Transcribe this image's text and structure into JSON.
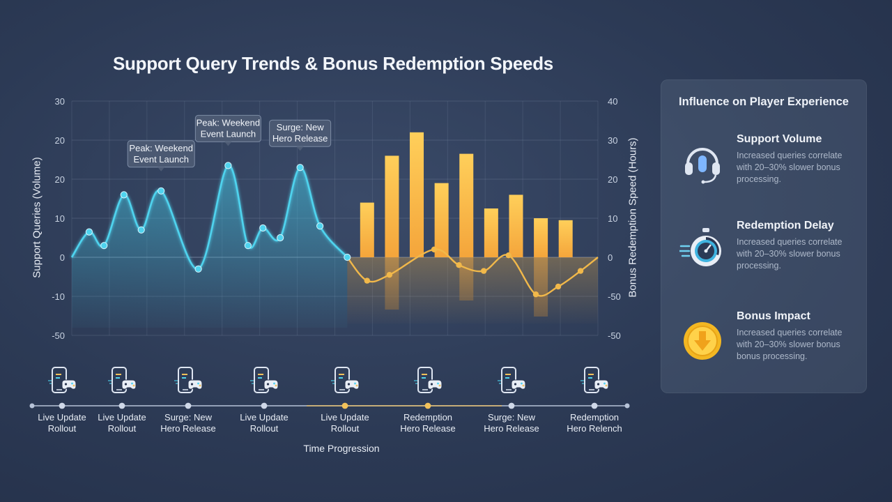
{
  "title": "Support Query Trends & Bonus Redemption Speeds",
  "chart_data": {
    "type": "line+bar",
    "title": "Support Query Trends & Bonus Redemption Speeds",
    "xlabel": "Time Progression",
    "ylabel_left": "Support Queries (Volume)",
    "ylabel_right": "Bonus Redemption Speed (Hours)",
    "ylim_left": [
      -50,
      30
    ],
    "ylim_right": [
      -50,
      40
    ],
    "left_ticks": [
      "30",
      "20",
      "20",
      "10",
      "0",
      "-10",
      "-50"
    ],
    "right_ticks": [
      "40",
      "30",
      "20",
      "10",
      "0",
      "-50",
      "-50"
    ],
    "grid": true,
    "support_queries": [
      {
        "x": 0.0,
        "y": 0
      },
      {
        "x": 0.7,
        "y": 6.5
      },
      {
        "x": 1.3,
        "y": 3
      },
      {
        "x": 2.1,
        "y": 16
      },
      {
        "x": 2.8,
        "y": 7
      },
      {
        "x": 3.6,
        "y": 17
      },
      {
        "x": 5.1,
        "y": -3
      },
      {
        "x": 6.3,
        "y": 23.5
      },
      {
        "x": 7.1,
        "y": 3
      },
      {
        "x": 7.7,
        "y": 7.5
      },
      {
        "x": 8.4,
        "y": 5
      },
      {
        "x": 9.2,
        "y": 23
      },
      {
        "x": 10.0,
        "y": 8
      },
      {
        "x": 11.1,
        "y": 0
      }
    ],
    "redemption_speed": [
      {
        "x": 11.1,
        "y": 0
      },
      {
        "x": 11.9,
        "y": -6
      },
      {
        "x": 12.8,
        "y": -4.5
      },
      {
        "x": 14.6,
        "y": 2
      },
      {
        "x": 15.6,
        "y": -2
      },
      {
        "x": 16.6,
        "y": -3.5
      },
      {
        "x": 17.6,
        "y": 0.5
      },
      {
        "x": 18.7,
        "y": -9.5
      },
      {
        "x": 19.6,
        "y": -7.5
      },
      {
        "x": 20.5,
        "y": -3.5
      },
      {
        "x": 21.2,
        "y": 0
      }
    ],
    "bars_right_axis": [
      {
        "x": 11.9,
        "value": 14
      },
      {
        "x": 12.9,
        "value": 26
      },
      {
        "x": 13.9,
        "value": 32
      },
      {
        "x": 14.9,
        "value": 19
      },
      {
        "x": 15.9,
        "value": 26.5
      },
      {
        "x": 16.9,
        "value": 12.5
      },
      {
        "x": 17.9,
        "value": 16
      },
      {
        "x": 18.9,
        "value": 10
      },
      {
        "x": 19.9,
        "value": 9.5
      }
    ],
    "annotations": [
      {
        "text": [
          "Peak: Weekend",
          "Event Launch"
        ],
        "x": 3.6,
        "y": 17
      },
      {
        "text": [
          "Peak: Weekend",
          "Event Launch"
        ],
        "x": 6.3,
        "y": 23.5
      },
      {
        "text": [
          "Surge: New",
          "Hero Release"
        ],
        "x": 9.2,
        "y": 23
      }
    ]
  },
  "timeline": {
    "x_axis_title": "Time Progression",
    "markers": [
      {
        "label": [
          "Live Update",
          "Rollout"
        ]
      },
      {
        "label": [
          "Live Update",
          "Rollout"
        ]
      },
      {
        "label": [
          "Surge: New",
          "Hero Release"
        ]
      },
      {
        "label": [
          "Live Update",
          "Rollout"
        ]
      },
      {
        "label": [
          "Live Update",
          "Rollout"
        ]
      },
      {
        "label": [
          "Redemption",
          "Hero Release"
        ]
      },
      {
        "label": [
          "Surge: New",
          "Hero Release"
        ]
      },
      {
        "label": [
          "Redemption",
          "Hero Relench"
        ]
      }
    ]
  },
  "panel": {
    "title": "Influence on Player Experience",
    "cards": [
      {
        "heading": "Support Volume",
        "text": "Increased queries correlate with 20–30% slower bonus processing.",
        "icon": "headset-icon"
      },
      {
        "heading": "Redemption Delay",
        "text": "Increased queries correlate with 20–30% slower bonus processing.",
        "icon": "stopwatch-icon"
      },
      {
        "heading": "Bonus Impact",
        "text": "Increased queries correlate with 20–30% slower bonus bonus processing.",
        "icon": "coin-download-icon"
      }
    ]
  },
  "colors": {
    "line_primary": "#4fd3ee",
    "line_secondary": "#f1b84a",
    "bar": "#f8b84a",
    "timeline_accent": "#f1c15a"
  }
}
